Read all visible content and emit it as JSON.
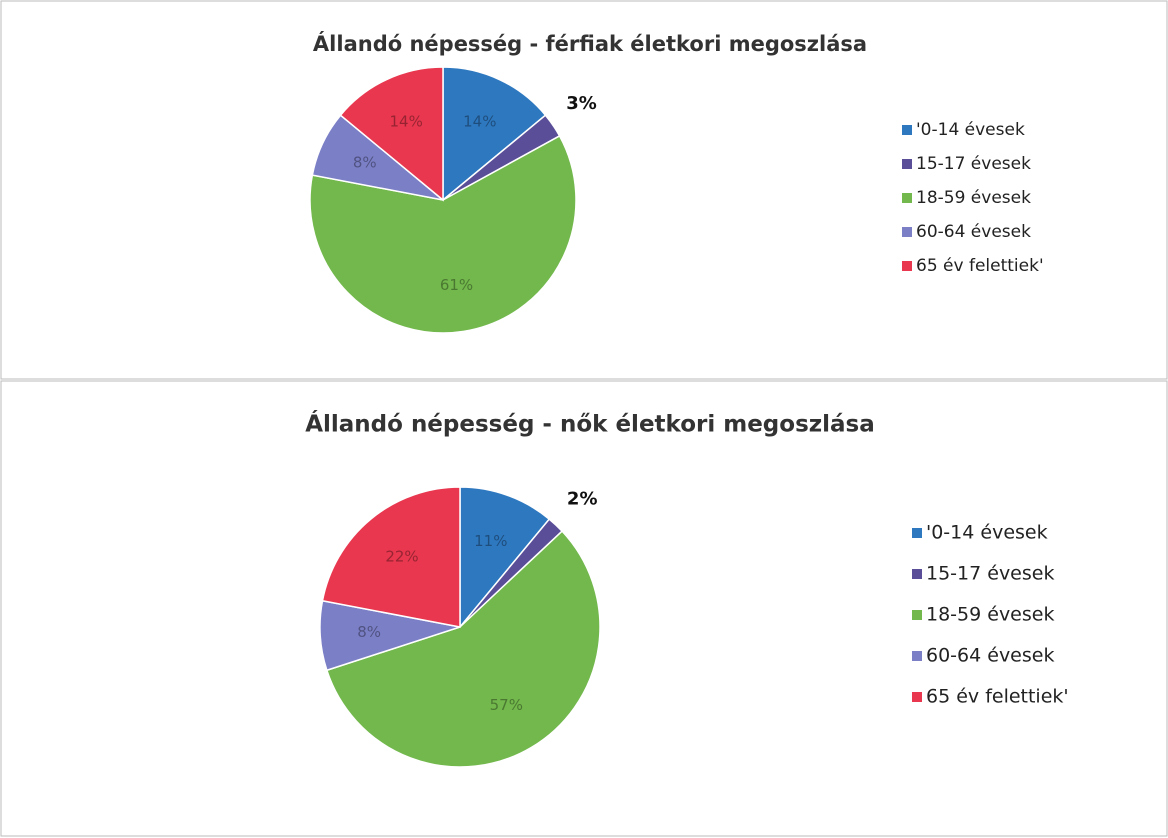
{
  "chart_data": [
    {
      "type": "pie",
      "title": "Állandó népesség - férfiak életkori megoszlása",
      "categories": [
        "'0-14 évesek",
        "15-17 évesek",
        "18-59 évesek",
        "60-64 évesek",
        "65 év felettiek'"
      ],
      "values": [
        14,
        3,
        61,
        8,
        14
      ],
      "value_labels": [
        "14%",
        "3%",
        "61%",
        "8%",
        "14%"
      ],
      "colors": [
        "#2e78c0",
        "#5a4e98",
        "#72b84c",
        "#7b7fc6",
        "#e8374e"
      ]
    },
    {
      "type": "pie",
      "title": "Állandó népesség - nők életkori megoszlása",
      "categories": [
        "'0-14 évesek",
        "15-17 évesek",
        "18-59 évesek",
        "60-64 évesek",
        "65 év felettiek'"
      ],
      "values": [
        11,
        2,
        57,
        8,
        22
      ],
      "value_labels": [
        "11%",
        "2%",
        "57%",
        "8%",
        "22%"
      ],
      "colors": [
        "#2e78c0",
        "#5a4e98",
        "#72b84c",
        "#7b7fc6",
        "#e8374e"
      ]
    }
  ]
}
